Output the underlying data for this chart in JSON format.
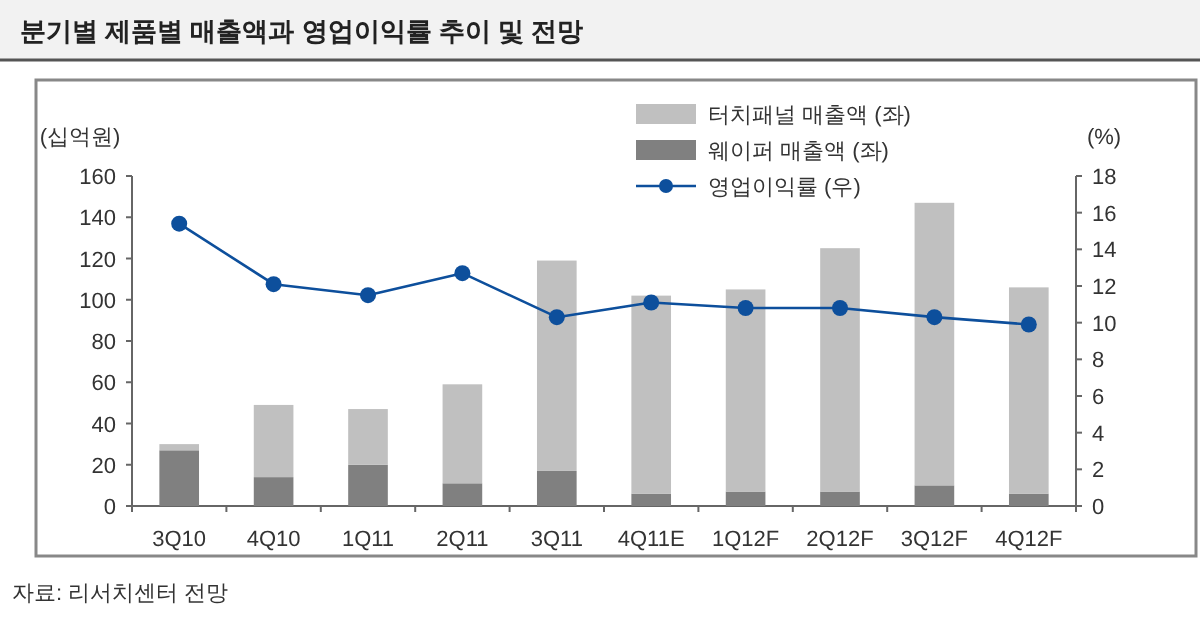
{
  "chart_data": {
    "type": "bar",
    "title": "분기별 제품별 매출액과 영업이익률 추이 및 전망",
    "ylabel": "(십억원)",
    "y2label": "(%)",
    "categories": [
      "3Q10",
      "4Q10",
      "1Q11",
      "2Q11",
      "3Q11",
      "4Q11E",
      "1Q12F",
      "2Q12F",
      "3Q12F",
      "4Q12F"
    ],
    "stacked": true,
    "series": [
      {
        "name": "웨이퍼 매출액 (좌)",
        "color": "#808080",
        "values": [
          27,
          14,
          20,
          11,
          17,
          6,
          7,
          7,
          10,
          6
        ]
      },
      {
        "name": "터치패널 매출액 (좌)",
        "color": "#c0c0c0",
        "values": [
          3,
          35,
          27,
          48,
          102,
          96,
          98,
          118,
          137,
          100
        ]
      },
      {
        "name": "영업이익률 (우)",
        "type": "line",
        "axis": "y2",
        "color": "#0d4f9c",
        "values": [
          15.4,
          12.1,
          11.5,
          12.7,
          10.3,
          11.1,
          10.8,
          10.8,
          10.3,
          9.9
        ]
      }
    ],
    "ylim": [
      0,
      160
    ],
    "yticks": [
      0,
      20,
      40,
      60,
      80,
      100,
      120,
      140,
      160
    ],
    "y2lim": [
      0,
      18
    ],
    "y2ticks": [
      0,
      2,
      4,
      6,
      8,
      10,
      12,
      14,
      16,
      18
    ],
    "legend": "top right",
    "marker": "circle",
    "line_style": "solid",
    "grid": false,
    "annotations": [
      "자료: 리서치센터 전망"
    ]
  }
}
